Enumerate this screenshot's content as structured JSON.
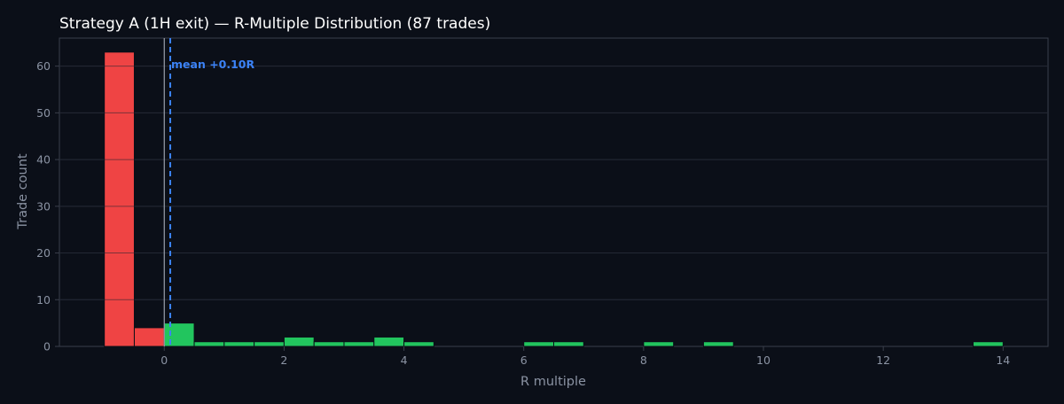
{
  "colors": {
    "background": "#0b0f18",
    "plot_background": "#0b0f18",
    "grid": "#2a2f3b",
    "frame": "#3a3f4b",
    "text": "#ffffff",
    "tick_text": "#8b93a3",
    "loss_bar": "#ef4444",
    "win_bar": "#22c55e",
    "mean_line": "#3b82f6",
    "zero_line": "#9aa1ad"
  },
  "chart_data": {
    "type": "bar",
    "title": "Strategy A (1H exit) — R-Multiple Distribution (87 trades)",
    "xlabel": "R multiple",
    "ylabel": "Trade count",
    "xlim": [
      -1.75,
      14.75
    ],
    "ylim": [
      0,
      66
    ],
    "grid": true,
    "x_ticks": [
      "0",
      "2",
      "4",
      "6",
      "8",
      "10",
      "12",
      "14"
    ],
    "x_tick_values": [
      0,
      2,
      4,
      6,
      8,
      10,
      12,
      14
    ],
    "y_ticks": [
      "0",
      "10",
      "20",
      "30",
      "40",
      "50",
      "60"
    ],
    "y_tick_values": [
      0,
      10,
      20,
      30,
      40,
      50,
      60
    ],
    "bin_width": 0.5,
    "bins": [
      {
        "start": -1.0,
        "count": 63,
        "outcome": "loss"
      },
      {
        "start": -0.5,
        "count": 4,
        "outcome": "loss"
      },
      {
        "start": 0.0,
        "count": 5,
        "outcome": "win"
      },
      {
        "start": 0.5,
        "count": 1,
        "outcome": "win"
      },
      {
        "start": 1.0,
        "count": 1,
        "outcome": "win"
      },
      {
        "start": 1.5,
        "count": 1,
        "outcome": "win"
      },
      {
        "start": 2.0,
        "count": 2,
        "outcome": "win"
      },
      {
        "start": 2.5,
        "count": 1,
        "outcome": "win"
      },
      {
        "start": 3.0,
        "count": 1,
        "outcome": "win"
      },
      {
        "start": 3.5,
        "count": 2,
        "outcome": "win"
      },
      {
        "start": 4.0,
        "count": 1,
        "outcome": "win"
      },
      {
        "start": 6.0,
        "count": 1,
        "outcome": "win"
      },
      {
        "start": 6.5,
        "count": 1,
        "outcome": "win"
      },
      {
        "start": 8.0,
        "count": 1,
        "outcome": "win"
      },
      {
        "start": 9.0,
        "count": 1,
        "outcome": "win"
      },
      {
        "start": 13.5,
        "count": 1,
        "outcome": "win"
      }
    ],
    "zero_line_x": 0,
    "mean_line_x": 0.1,
    "mean_annotation": "mean +0.10R"
  }
}
